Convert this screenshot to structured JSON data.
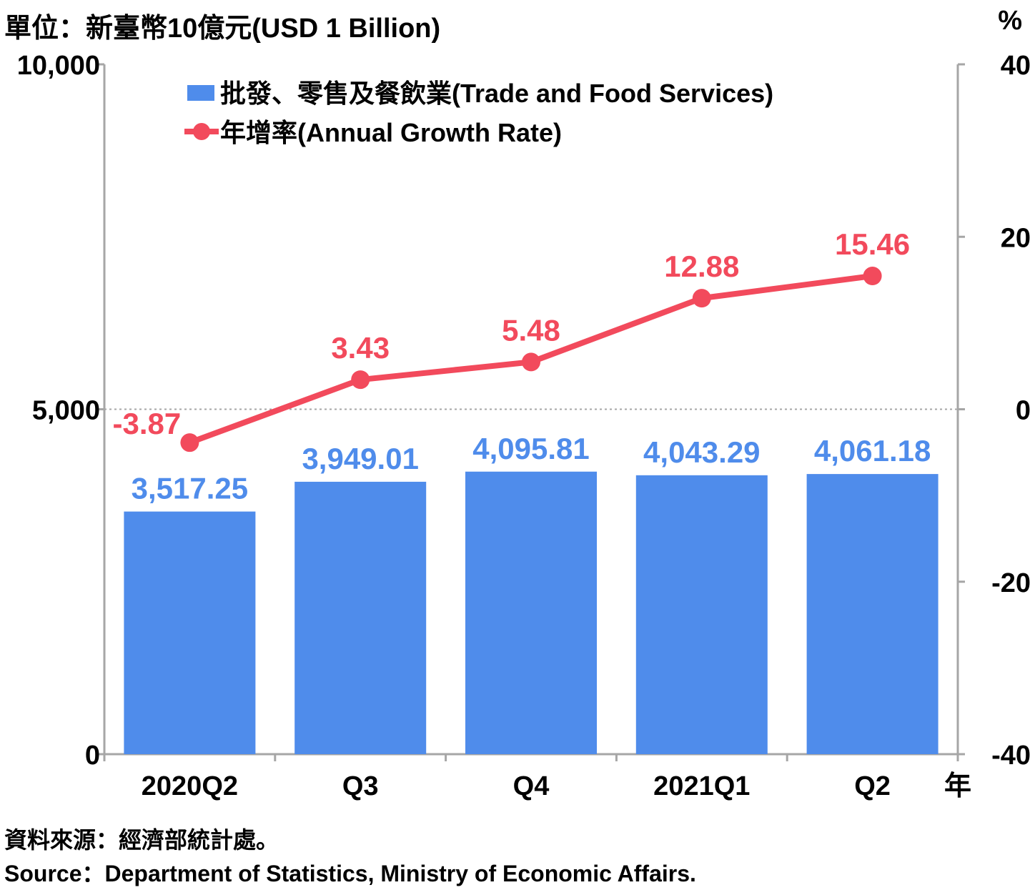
{
  "unit_left": "單位：新臺幣10億元(USD 1 Billion)",
  "unit_right": "%",
  "x_unit": "年",
  "source_zh": "資料來源：經濟部統計處。",
  "source_en": "Source：Department of Statistics, Ministry of Economic Affairs.",
  "colors": {
    "bar": "#4f8ceb",
    "line": "#f24a5c",
    "axis": "#a6a6a6",
    "text": "#000000"
  },
  "chart_data": {
    "type": "bar",
    "categories": [
      "2020Q2",
      "Q3",
      "Q4",
      "2021Q1",
      "Q2"
    ],
    "series": [
      {
        "name": "批發、零售及餐飲業(Trade and Food Services)",
        "type": "bar",
        "axis": "left",
        "values": [
          3517.25,
          3949.01,
          4095.81,
          4043.29,
          4061.18
        ],
        "labels": [
          "3,517.25",
          "3,949.01",
          "4,095.81",
          "4,043.29",
          "4,061.18"
        ]
      },
      {
        "name": "年增率(Annual Growth Rate)",
        "type": "line",
        "axis": "right",
        "values": [
          -3.87,
          3.43,
          5.48,
          12.88,
          15.46
        ],
        "labels": [
          "-3.87",
          "3.43",
          "5.48",
          "12.88",
          "15.46"
        ]
      }
    ],
    "y_left": {
      "ylim": [
        0,
        10000
      ],
      "ticks": [
        0,
        5000,
        10000
      ],
      "tick_labels": [
        "0",
        "5,000",
        "10,000"
      ]
    },
    "y_right": {
      "ylim": [
        -40,
        40
      ],
      "ticks": [
        -40,
        -20,
        0,
        20,
        40
      ],
      "tick_labels": [
        "-40",
        "-20",
        "0",
        "20",
        "40"
      ]
    },
    "legend": "top-left",
    "grid": false
  }
}
